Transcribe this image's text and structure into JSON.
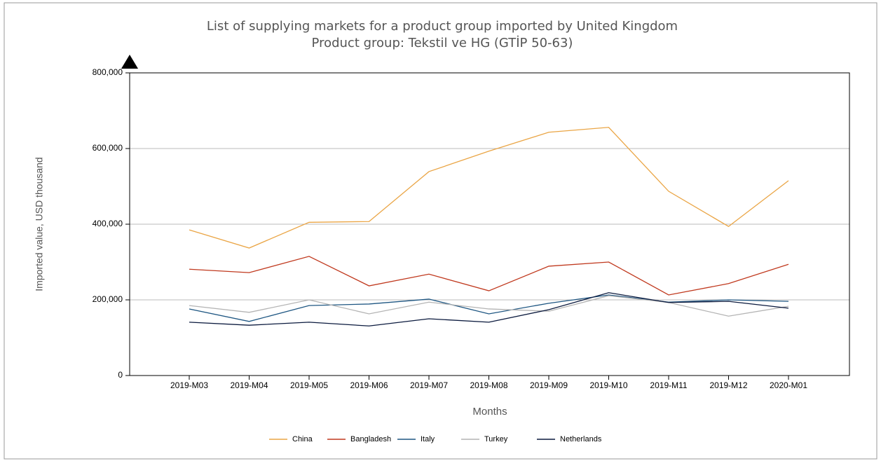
{
  "chart_data": {
    "type": "line",
    "title": "List of supplying markets for a product group imported by United Kingdom",
    "subtitle": "Product group: Tekstil ve HG (GTİP 50-63)",
    "x_label": "Months",
    "y_label": "Imported value, USD thousand",
    "categories": [
      "2019-M03",
      "2019-M04",
      "2019-M05",
      "2019-M06",
      "2019-M07",
      "2019-M08",
      "2019-M09",
      "2019-M10",
      "2019-M11",
      "2019-M12",
      "2020-M01"
    ],
    "series": [
      {
        "name": "China",
        "color": "#eaa545",
        "values": [
          385000,
          337000,
          405000,
          407000,
          539000,
          593000,
          643000,
          656000,
          487000,
          394000,
          515000
        ]
      },
      {
        "name": "Bangladesh",
        "color": "#c0391e",
        "values": [
          281000,
          272000,
          315000,
          237000,
          268000,
          224000,
          289000,
          300000,
          213000,
          243000,
          294000
        ]
      },
      {
        "name": "Italy",
        "color": "#1e5682",
        "values": [
          176000,
          143000,
          185000,
          189000,
          202000,
          163000,
          191000,
          213000,
          194000,
          200000,
          196000
        ]
      },
      {
        "name": "Turkey",
        "color": "#b4b4b4",
        "values": [
          185000,
          167000,
          200000,
          163000,
          194000,
          176000,
          170000,
          211000,
          193000,
          157000,
          183000
        ]
      },
      {
        "name": "Netherlands",
        "color": "#0b1a3e",
        "values": [
          141000,
          133000,
          141000,
          131000,
          150000,
          141000,
          174000,
          219000,
          193000,
          196000,
          178000
        ]
      }
    ],
    "ylim": [
      0,
      800000
    ],
    "yticks": [
      0,
      {
        "value": 200000,
        "label": "200,000"
      },
      {
        "value": 400000,
        "label": "400,000"
      },
      {
        "value": 600000,
        "label": "600,000"
      },
      {
        "value": 800000,
        "label": "800,000"
      }
    ],
    "grid": true,
    "legend": "bottom"
  }
}
